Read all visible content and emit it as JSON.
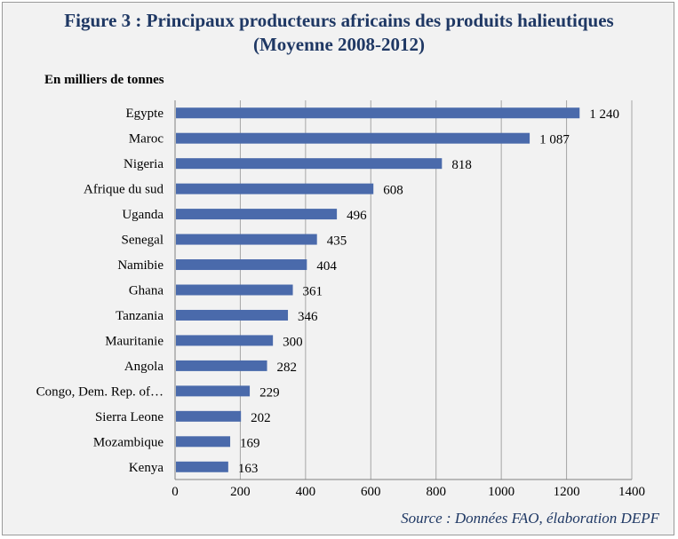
{
  "figure": {
    "title_line1": "Figure 3 : Principaux producteurs africains des produits halieutiques",
    "title_line2": "(Moyenne 2008-2012)",
    "unit_label": "En milliers de tonnes",
    "source": "Source : Données FAO, élaboration DEPF"
  },
  "chart_data": {
    "type": "bar",
    "orientation": "horizontal",
    "title": "Figure 3 : Principaux producteurs africains des produits halieutiques (Moyenne 2008-2012)",
    "ylabel": "En milliers de tonnes",
    "xlabel": "",
    "categories": [
      "Egypte",
      "Maroc",
      "Nigeria",
      "Afrique du sud",
      "Uganda",
      "Senegal",
      "Namibie",
      "Ghana",
      "Tanzania",
      "Mauritanie",
      "Angola",
      "Congo, Dem. Rep. of…",
      "Sierra Leone",
      "Mozambique",
      "Kenya"
    ],
    "values": [
      1240,
      1087,
      818,
      608,
      496,
      435,
      404,
      361,
      346,
      300,
      282,
      229,
      202,
      169,
      163
    ],
    "value_labels": [
      "1 240",
      "1 087",
      "818",
      "608",
      "496",
      "435",
      "404",
      "361",
      "346",
      "300",
      "282",
      "229",
      "202",
      "169",
      "163"
    ],
    "xlim": [
      0,
      1400
    ],
    "xticks": [
      0,
      200,
      400,
      600,
      800,
      1000,
      1200,
      1400
    ],
    "grid": true,
    "bar_color": "#4a6aab"
  }
}
